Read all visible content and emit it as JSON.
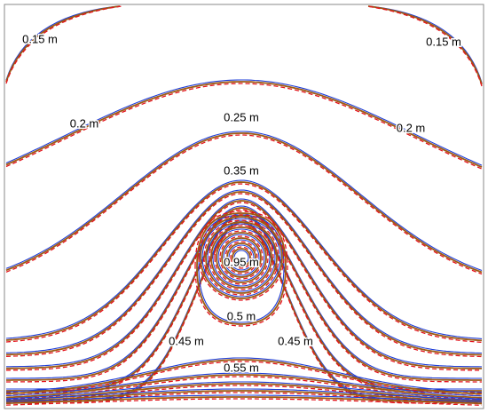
{
  "chart_data": {
    "type": "contour",
    "contour_labels": [
      {
        "value": 0.15,
        "label": "0.15 m"
      },
      {
        "value": 0.15,
        "label": "0.15 m"
      },
      {
        "value": 0.2,
        "label": "0.2 m"
      },
      {
        "value": 0.2,
        "label": "0.2 m"
      },
      {
        "value": 0.25,
        "label": "0.25 m"
      },
      {
        "value": 0.35,
        "label": "0.35 m"
      },
      {
        "value": 0.95,
        "label": "0.95 m"
      },
      {
        "value": 0.5,
        "label": "0.5 m"
      },
      {
        "value": 0.45,
        "label": "0.45 m"
      },
      {
        "value": 0.45,
        "label": "0.45 m"
      },
      {
        "value": 0.55,
        "label": "0.55 m"
      }
    ],
    "line_colors": [
      "#9c5a14",
      "#e3141c",
      "#1f3fd8"
    ]
  }
}
